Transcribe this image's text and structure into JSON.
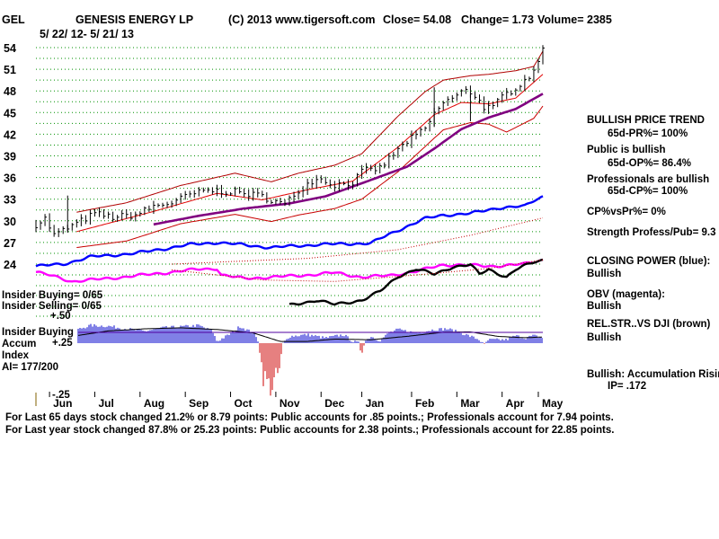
{
  "header": {
    "ticker": "GEL",
    "name": "GENESIS ENERGY LP",
    "copyright": "(C) 2013 www.tigersoft.com",
    "close": "Close=  54.08",
    "change": "Change= 1.73",
    "volume": "Volume= 2385",
    "date_range": "5/ 22/ 12-  5/ 21/ 13"
  },
  "colors": {
    "price": "#000000",
    "upper_band": "#b00000",
    "lower_band": "#c80000",
    "ma_fast": "#e00000",
    "ma_slow": "#800080",
    "closing_power": "#0000ff",
    "obv": "#ff00ff",
    "relstr": "#000000",
    "accum": "#0000cc",
    "accum_neg": "#cc0000",
    "grid": "#009000"
  },
  "chart_data": {
    "type": "line",
    "title": "GENESIS ENERGY LP",
    "x_tick_labels": [
      "Jun",
      "Jul",
      "Aug",
      "Sep",
      "Oct",
      "Nov",
      "Dec",
      "Jan",
      "Feb",
      "Mar",
      "Apr",
      "May"
    ],
    "y_tick_labels": [
      "54",
      "51",
      "48",
      "45",
      "42",
      "39",
      "36",
      "33",
      "30",
      "27",
      "24"
    ],
    "ylim": [
      24,
      54
    ],
    "price_knots": [
      [
        0,
        29.5
      ],
      [
        2,
        30.3
      ],
      [
        4,
        28.0
      ],
      [
        8,
        29.3
      ],
      [
        13,
        31.0
      ],
      [
        17,
        30.5
      ],
      [
        22,
        30.8
      ],
      [
        26,
        32.0
      ],
      [
        30,
        32.5
      ],
      [
        34,
        33.6
      ],
      [
        38,
        34.2
      ],
      [
        44,
        34.0
      ],
      [
        50,
        33.4
      ],
      [
        55,
        32.2
      ],
      [
        58,
        34.2
      ],
      [
        62,
        36.0
      ],
      [
        66,
        35.0
      ],
      [
        70,
        35.3
      ],
      [
        72,
        36.8
      ],
      [
        76,
        37.3
      ],
      [
        78,
        38.6
      ],
      [
        82,
        41.0
      ],
      [
        86,
        42.7
      ],
      [
        88,
        44.8
      ],
      [
        90,
        46.4
      ],
      [
        93,
        47.2
      ],
      [
        95,
        48.4
      ],
      [
        97,
        47.3
      ],
      [
        99,
        45.8
      ],
      [
        101,
        45.6
      ],
      [
        103,
        47.2
      ],
      [
        105,
        48.0
      ],
      [
        107,
        49.0
      ],
      [
        109,
        50.0
      ],
      [
        111,
        52.3
      ],
      [
        112,
        53.5
      ]
    ],
    "series": [
      {
        "name": "Price",
        "from": "price_knots"
      },
      {
        "name": "Upper band",
        "knots": [
          [
            9,
            31.2
          ],
          [
            20,
            32.5
          ],
          [
            32,
            34.9
          ],
          [
            44,
            36.6
          ],
          [
            52,
            35.4
          ],
          [
            58,
            36.6
          ],
          [
            66,
            37.7
          ],
          [
            72,
            39.3
          ],
          [
            80,
            44.5
          ],
          [
            86,
            47.9
          ],
          [
            90,
            49.5
          ],
          [
            96,
            50.1
          ],
          [
            100,
            50.3
          ],
          [
            106,
            50.8
          ],
          [
            110,
            51.4
          ],
          [
            112,
            53.5
          ]
        ]
      },
      {
        "name": "Lower band",
        "knots": [
          [
            9,
            26.3
          ],
          [
            20,
            27.2
          ],
          [
            32,
            29.6
          ],
          [
            44,
            30.9
          ],
          [
            52,
            29.9
          ],
          [
            58,
            30.8
          ],
          [
            66,
            31.7
          ],
          [
            72,
            33.0
          ],
          [
            80,
            36.8
          ],
          [
            86,
            40.3
          ],
          [
            90,
            42.6
          ],
          [
            96,
            43.6
          ],
          [
            100,
            43.4
          ],
          [
            104,
            42.3
          ],
          [
            110,
            44.2
          ],
          [
            112,
            45.9
          ]
        ]
      },
      {
        "name": "21-day MA",
        "knots": [
          [
            9,
            28.5
          ],
          [
            26,
            31.3
          ],
          [
            40,
            33.8
          ],
          [
            50,
            32.9
          ],
          [
            60,
            34.3
          ],
          [
            70,
            35.5
          ],
          [
            80,
            40.2
          ],
          [
            88,
            44.7
          ],
          [
            94,
            46.4
          ],
          [
            100,
            46.2
          ],
          [
            106,
            47.0
          ],
          [
            112,
            50.3
          ]
        ]
      },
      {
        "name": "65-day MA",
        "knots": [
          [
            26,
            29.5
          ],
          [
            36,
            30.7
          ],
          [
            46,
            31.7
          ],
          [
            56,
            32.4
          ],
          [
            64,
            33.4
          ],
          [
            72,
            35.2
          ],
          [
            82,
            37.5
          ],
          [
            88,
            40.0
          ],
          [
            94,
            42.7
          ],
          [
            100,
            44.3
          ],
          [
            106,
            45.5
          ],
          [
            112,
            47.6
          ]
        ]
      },
      {
        "name": "Closing Power",
        "knots": [
          [
            0,
            23.7
          ],
          [
            6,
            24.0
          ],
          [
            12,
            25.0
          ],
          [
            22,
            25.5
          ],
          [
            34,
            26.7
          ],
          [
            40,
            27.0
          ],
          [
            52,
            26.3
          ],
          [
            62,
            26.7
          ],
          [
            74,
            26.9
          ],
          [
            80,
            28.7
          ],
          [
            86,
            30.3
          ],
          [
            90,
            30.8
          ],
          [
            96,
            31.0
          ],
          [
            102,
            31.8
          ],
          [
            108,
            32.0
          ],
          [
            110,
            32.8
          ],
          [
            112,
            33.4
          ]
        ]
      },
      {
        "name": "OBV",
        "knots": [
          [
            0,
            22.9
          ],
          [
            4,
            22.3
          ],
          [
            8,
            21.6
          ],
          [
            14,
            21.9
          ],
          [
            24,
            22.5
          ],
          [
            36,
            23.3
          ],
          [
            40,
            23.4
          ],
          [
            41,
            22.5
          ],
          [
            46,
            22.0
          ],
          [
            52,
            22.2
          ],
          [
            58,
            22.4
          ],
          [
            66,
            22.8
          ],
          [
            72,
            22.2
          ],
          [
            78,
            22.4
          ],
          [
            84,
            23.0
          ],
          [
            90,
            23.9
          ],
          [
            94,
            23.9
          ],
          [
            100,
            23.7
          ],
          [
            108,
            24.0
          ],
          [
            112,
            24.6
          ]
        ]
      },
      {
        "name": "Rel.Str vs DJI",
        "knots": [
          [
            56,
            18.3
          ],
          [
            62,
            19.0
          ],
          [
            66,
            18.4
          ],
          [
            72,
            19.0
          ],
          [
            76,
            20.2
          ],
          [
            80,
            22.3
          ],
          [
            84,
            23.3
          ],
          [
            88,
            22.6
          ],
          [
            92,
            23.6
          ],
          [
            96,
            23.9
          ],
          [
            98,
            22.6
          ],
          [
            100,
            23.3
          ],
          [
            104,
            22.2
          ],
          [
            106,
            23.2
          ],
          [
            110,
            24.3
          ],
          [
            112,
            24.6
          ]
        ]
      }
    ],
    "accum_knots": [
      [
        0,
        -0.05
      ],
      [
        3,
        -0.15
      ],
      [
        5,
        0.18
      ],
      [
        8,
        0.35
      ],
      [
        12,
        0.52
      ],
      [
        16,
        0.5
      ],
      [
        20,
        0.42
      ],
      [
        24,
        0.35
      ],
      [
        28,
        0.45
      ],
      [
        32,
        0.48
      ],
      [
        36,
        0.52
      ],
      [
        39,
        0.35
      ],
      [
        40,
        0.05
      ],
      [
        44,
        0.35
      ],
      [
        45,
        0.5
      ],
      [
        48,
        0.3
      ],
      [
        50,
        -0.12
      ],
      [
        52,
        -0.18
      ],
      [
        54,
        -0.1
      ],
      [
        56,
        0.2
      ],
      [
        60,
        0.25
      ],
      [
        64,
        0.15
      ],
      [
        68,
        0.25
      ],
      [
        70,
        0.05
      ],
      [
        72,
        -0.02
      ],
      [
        74,
        0.2
      ],
      [
        76,
        0.08
      ],
      [
        78,
        0.3
      ],
      [
        80,
        0.4
      ],
      [
        82,
        0.35
      ],
      [
        84,
        0.3
      ],
      [
        88,
        0.4
      ],
      [
        91,
        0.42
      ],
      [
        94,
        0.3
      ],
      [
        96,
        0.2
      ],
      [
        98,
        0.1
      ],
      [
        99,
        -0.05
      ],
      [
        100,
        0.1
      ],
      [
        104,
        0.1
      ],
      [
        106,
        0.22
      ],
      [
        108,
        0.15
      ],
      [
        110,
        0.22
      ],
      [
        112,
        0.15
      ]
    ],
    "accum_ma_knots": [
      [
        0,
        0.05
      ],
      [
        8,
        0.2
      ],
      [
        16,
        0.36
      ],
      [
        24,
        0.42
      ],
      [
        32,
        0.45
      ],
      [
        40,
        0.4
      ],
      [
        48,
        0.3
      ],
      [
        54,
        0.05
      ],
      [
        60,
        0.05
      ],
      [
        66,
        0.12
      ],
      [
        74,
        0.1
      ],
      [
        82,
        0.2
      ],
      [
        90,
        0.32
      ],
      [
        96,
        0.33
      ],
      [
        102,
        0.2
      ],
      [
        108,
        0.16
      ],
      [
        112,
        0.18
      ]
    ],
    "accum_tick_labels": [
      "+.50",
      "+.25",
      "-.25"
    ],
    "accum_ylim": [
      -0.25,
      0.5
    ]
  },
  "indicators": {
    "insider_buying": "Insider Buying= 0/65",
    "insider_selling": "Insider Selling= 0/65",
    "accum_label_1": "Insider Buying",
    "accum_label_2": "Accum",
    "accum_label_3": "Index",
    "ai": "AI= 177/200"
  },
  "sidebar": {
    "trend_title": "BULLISH PRICE TREND",
    "pr": "65d-PR%= 100%",
    "public": "Public is bullish",
    "op": "65d-OP%= 86.4%",
    "pros": "Professionals are bullish",
    "cp": "65d-CP%= 100%",
    "cpvspr": "CP%vsPr%=  0%",
    "strength": "Strength Profess/Pub= 9.3",
    "closing_power": "CLOSING POWER (blue):",
    "closing_power_val": "Bullish",
    "obv": "OBV (magenta):",
    "obv_val": "Bullish",
    "relstr": "REL.STR..VS DJI (brown)",
    "relstr_val": "Bullish",
    "accum": "Bullish: Accumulation Rising",
    "ip": "IP=  .172"
  },
  "footer": {
    "line1": "For Last 65 days stock changed  21.2% or  8.79 points:  Public accounts for  .85 points.;  Professionals account for  7.94 points.",
    "line2": "For Last year stock changed  87.8% or  25.23 points:  Public accounts for  2.38 points.;  Professionals account for  22.85 points."
  }
}
